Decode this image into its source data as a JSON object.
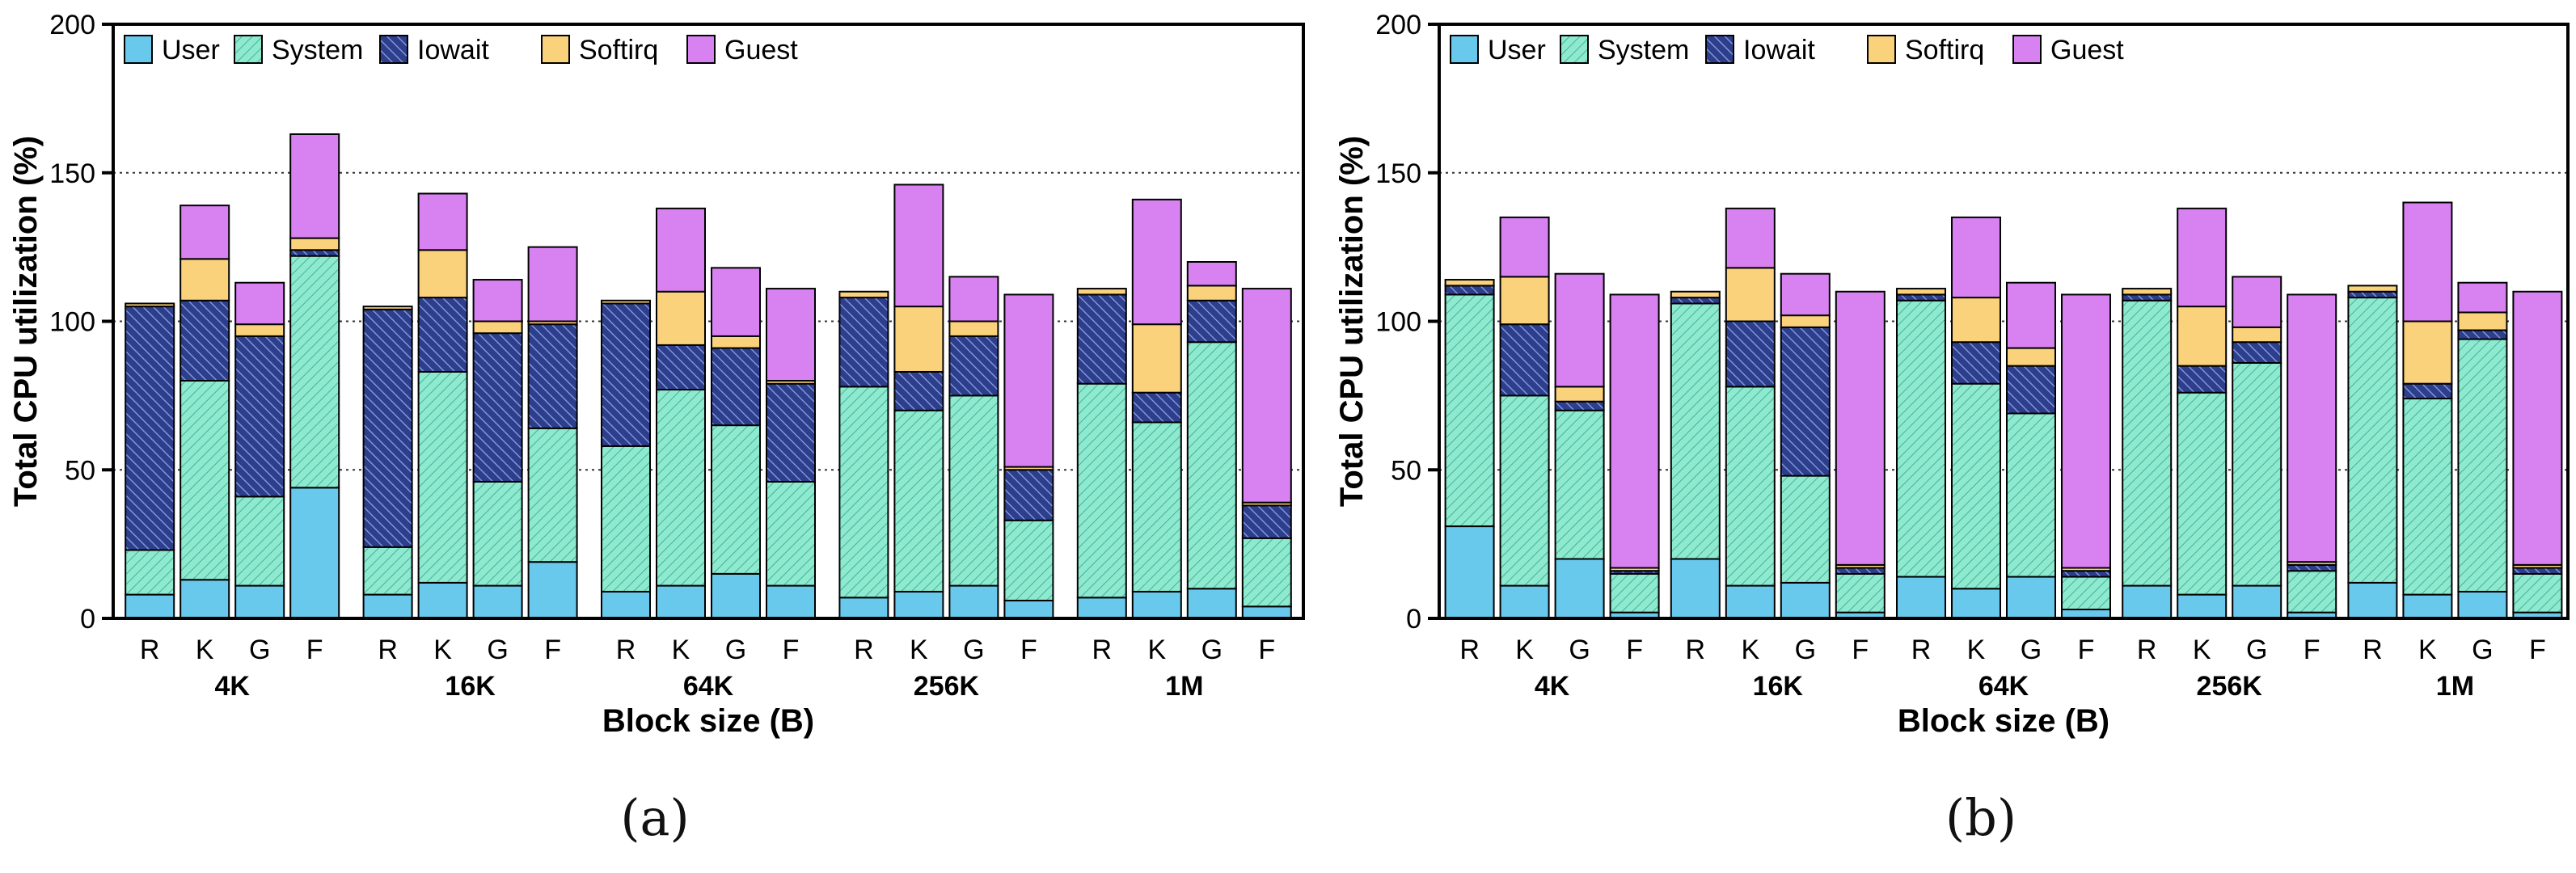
{
  "colors": {
    "User": "#69c9ec",
    "System": "#8ee9cf",
    "Iowait": "#2d3f8c",
    "Softirq": "#fbd27c",
    "Guest": "#d882f2",
    "grid": "#333333",
    "axis": "#000000"
  },
  "chart_data": [
    {
      "type": "bar",
      "stacked": true,
      "caption": "(a)",
      "title": "",
      "xlabel": "Block size (B)",
      "ylabel": "Total CPU utilization (%)",
      "ylim": [
        0,
        200
      ],
      "yticks": [
        "0",
        "50",
        "100",
        "150",
        "200"
      ],
      "grid": "dotted at 50, 100, 150",
      "legend": [
        "User",
        "System",
        "Iowait",
        "Softirq",
        "Guest"
      ],
      "groups": [
        "4K",
        "16K",
        "64K",
        "256K",
        "1M"
      ],
      "categories": [
        "R",
        "K",
        "G",
        "F"
      ],
      "series": [
        {
          "name": "User",
          "values": [
            [
              8,
              13,
              11,
              44
            ],
            [
              8,
              12,
              11,
              19
            ],
            [
              9,
              11,
              15,
              11
            ],
            [
              7,
              9,
              11,
              6
            ],
            [
              7,
              9,
              10,
              4
            ]
          ]
        },
        {
          "name": "System",
          "values": [
            [
              15,
              67,
              30,
              78
            ],
            [
              16,
              71,
              35,
              45
            ],
            [
              49,
              66,
              50,
              35
            ],
            [
              71,
              61,
              64,
              27
            ],
            [
              72,
              57,
              83,
              23
            ]
          ]
        },
        {
          "name": "Iowait",
          "values": [
            [
              82,
              27,
              54,
              2
            ],
            [
              80,
              25,
              50,
              35
            ],
            [
              48,
              15,
              26,
              33
            ],
            [
              30,
              13,
              20,
              17
            ],
            [
              30,
              10,
              14,
              11
            ]
          ]
        },
        {
          "name": "Softirq",
          "values": [
            [
              1,
              14,
              4,
              4
            ],
            [
              1,
              16,
              4,
              1
            ],
            [
              1,
              18,
              4,
              1
            ],
            [
              2,
              22,
              5,
              1
            ],
            [
              2,
              23,
              5,
              1
            ]
          ]
        },
        {
          "name": "Guest",
          "values": [
            [
              0,
              18,
              14,
              35
            ],
            [
              0,
              19,
              14,
              25
            ],
            [
              0,
              28,
              23,
              31
            ],
            [
              0,
              41,
              15,
              58
            ],
            [
              0,
              42,
              8,
              72
            ]
          ]
        }
      ]
    },
    {
      "type": "bar",
      "stacked": true,
      "caption": "(b)",
      "title": "",
      "xlabel": "Block size (B)",
      "ylabel": "Total CPU utilization (%)",
      "ylim": [
        0,
        200
      ],
      "yticks": [
        "0",
        "50",
        "100",
        "150",
        "200"
      ],
      "grid": "dotted at 50, 100, 150",
      "legend": [
        "User",
        "System",
        "Iowait",
        "Softirq",
        "Guest"
      ],
      "groups": [
        "4K",
        "16K",
        "64K",
        "256K",
        "1M"
      ],
      "categories": [
        "R",
        "K",
        "G",
        "F"
      ],
      "series": [
        {
          "name": "User",
          "values": [
            [
              31,
              11,
              20,
              2
            ],
            [
              20,
              11,
              12,
              2
            ],
            [
              14,
              10,
              14,
              3
            ],
            [
              11,
              8,
              11,
              2
            ],
            [
              12,
              8,
              9,
              2
            ]
          ]
        },
        {
          "name": "System",
          "values": [
            [
              78,
              64,
              50,
              13
            ],
            [
              86,
              67,
              36,
              13
            ],
            [
              93,
              69,
              55,
              11
            ],
            [
              96,
              68,
              75,
              14
            ],
            [
              96,
              66,
              85,
              13
            ]
          ]
        },
        {
          "name": "Iowait",
          "values": [
            [
              3,
              24,
              3,
              1
            ],
            [
              2,
              22,
              50,
              2
            ],
            [
              2,
              14,
              16,
              2
            ],
            [
              2,
              9,
              7,
              2
            ],
            [
              2,
              5,
              3,
              2
            ]
          ]
        },
        {
          "name": "Softirq",
          "values": [
            [
              2,
              16,
              5,
              1
            ],
            [
              2,
              18,
              4,
              1
            ],
            [
              2,
              15,
              6,
              1
            ],
            [
              2,
              20,
              5,
              1
            ],
            [
              2,
              21,
              6,
              1
            ]
          ]
        },
        {
          "name": "Guest",
          "values": [
            [
              0,
              20,
              38,
              92
            ],
            [
              0,
              20,
              14,
              92
            ],
            [
              0,
              27,
              22,
              92
            ],
            [
              0,
              33,
              17,
              90
            ],
            [
              0,
              40,
              10,
              92
            ]
          ]
        }
      ]
    }
  ]
}
